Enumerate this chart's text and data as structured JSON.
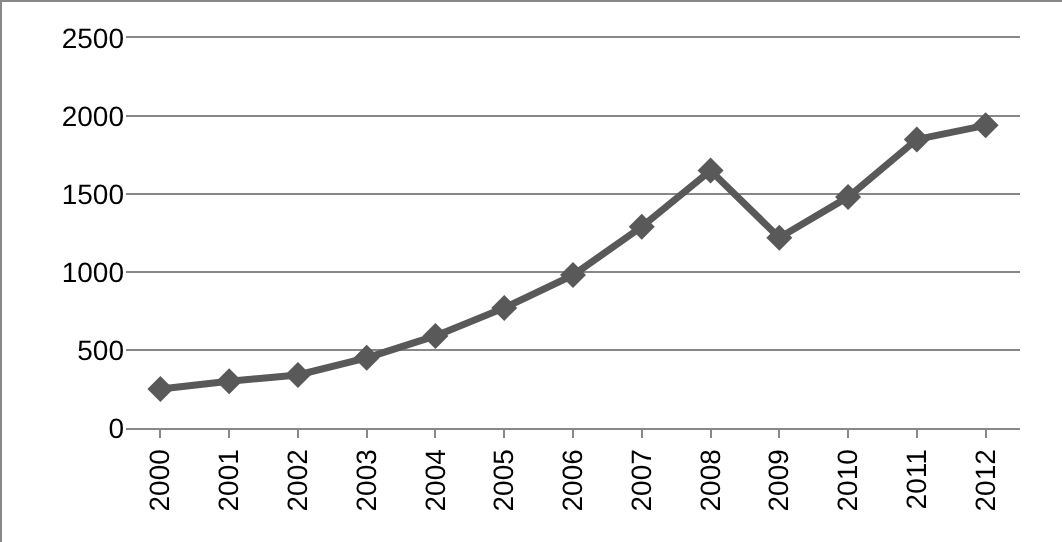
{
  "chart_data": {
    "type": "line",
    "categories": [
      "2000",
      "2001",
      "2002",
      "2003",
      "2004",
      "2005",
      "2006",
      "2007",
      "2008",
      "2009",
      "2010",
      "2011",
      "2012"
    ],
    "series": [
      {
        "color": "#595959",
        "values": [
          250,
          300,
          340,
          450,
          590,
          770,
          980,
          1290,
          1650,
          1220,
          1480,
          1850,
          1940
        ]
      }
    ],
    "ylim": [
      0,
      2500
    ],
    "yticks": [
      0,
      500,
      1000,
      1500,
      2000,
      2500
    ],
    "grid": "y",
    "marker": "diamond",
    "line_style": "solid"
  }
}
